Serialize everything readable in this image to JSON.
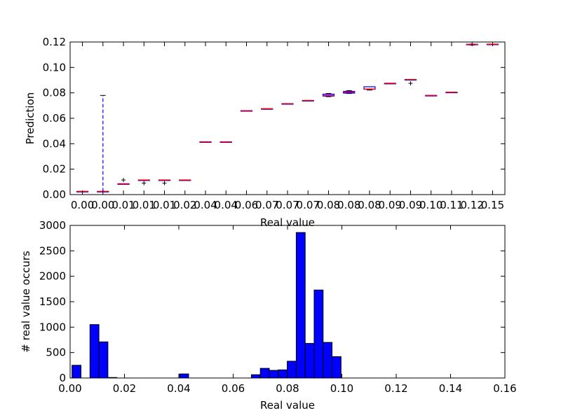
{
  "chart_data": [
    {
      "type": "box",
      "xlabel": "Real value",
      "ylabel": "Prediction",
      "ylim": [
        0,
        0.12
      ],
      "y_ticks": [
        "0.00",
        "0.02",
        "0.04",
        "0.06",
        "0.08",
        "0.10",
        "0.12"
      ],
      "categories": [
        "0.00",
        "0.00",
        "0.01",
        "0.01",
        "0.01",
        "0.02",
        "0.04",
        "0.04",
        "0.06",
        "0.07",
        "0.07",
        "0.07",
        "0.08",
        "0.08",
        "0.08",
        "0.09",
        "0.09",
        "0.10",
        "0.11",
        "0.12",
        "0.15"
      ],
      "boxes": [
        {
          "median": 0.0025,
          "q1": 0.0025,
          "q3": 0.0025,
          "whisker_low": 0.0025,
          "whisker_high": 0.0025,
          "fliers": []
        },
        {
          "median": 0.0025,
          "q1": 0.0025,
          "q3": 0.0025,
          "whisker_low": 0.0025,
          "whisker_high": 0.078,
          "fliers": []
        },
        {
          "median": 0.0085,
          "q1": 0.0085,
          "q3": 0.0085,
          "whisker_low": 0.0085,
          "whisker_high": 0.0085,
          "fliers": [
            0.0115
          ]
        },
        {
          "median": 0.0115,
          "q1": 0.0115,
          "q3": 0.0115,
          "whisker_low": 0.0115,
          "whisker_high": 0.0115,
          "fliers": [
            0.009
          ]
        },
        {
          "median": 0.0115,
          "q1": 0.0115,
          "q3": 0.0115,
          "whisker_low": 0.0115,
          "whisker_high": 0.0115,
          "fliers": [
            0.009
          ]
        },
        {
          "median": 0.0115,
          "q1": 0.0115,
          "q3": 0.0115,
          "whisker_low": 0.0115,
          "whisker_high": 0.0115,
          "fliers": []
        },
        {
          "median": 0.0415,
          "q1": 0.0415,
          "q3": 0.0415,
          "whisker_low": 0.0415,
          "whisker_high": 0.0415,
          "fliers": []
        },
        {
          "median": 0.0415,
          "q1": 0.0415,
          "q3": 0.0415,
          "whisker_low": 0.0415,
          "whisker_high": 0.0415,
          "fliers": []
        },
        {
          "median": 0.066,
          "q1": 0.066,
          "q3": 0.066,
          "whisker_low": 0.066,
          "whisker_high": 0.066,
          "fliers": []
        },
        {
          "median": 0.0675,
          "q1": 0.0675,
          "q3": 0.0675,
          "whisker_low": 0.0675,
          "whisker_high": 0.0675,
          "fliers": []
        },
        {
          "median": 0.0715,
          "q1": 0.0715,
          "q3": 0.0715,
          "whisker_low": 0.0715,
          "whisker_high": 0.0715,
          "fliers": []
        },
        {
          "median": 0.074,
          "q1": 0.074,
          "q3": 0.074,
          "whisker_low": 0.074,
          "whisker_high": 0.074,
          "fliers": []
        },
        {
          "median": 0.078,
          "q1": 0.0775,
          "q3": 0.079,
          "whisker_low": 0.077,
          "whisker_high": 0.0795,
          "fliers": []
        },
        {
          "median": 0.0805,
          "q1": 0.0798,
          "q3": 0.0812,
          "whisker_low": 0.0795,
          "whisker_high": 0.0818,
          "fliers": []
        },
        {
          "median": 0.083,
          "q1": 0.0828,
          "q3": 0.0848,
          "whisker_low": 0.0822,
          "whisker_high": 0.0848,
          "fliers": []
        },
        {
          "median": 0.0875,
          "q1": 0.0875,
          "q3": 0.0875,
          "whisker_low": 0.0875,
          "whisker_high": 0.0875,
          "fliers": []
        },
        {
          "median": 0.0905,
          "q1": 0.0905,
          "q3": 0.0905,
          "whisker_low": 0.0905,
          "whisker_high": 0.0905,
          "fliers": [
            0.0875
          ]
        },
        {
          "median": 0.078,
          "q1": 0.078,
          "q3": 0.078,
          "whisker_low": 0.078,
          "whisker_high": 0.078,
          "fliers": []
        },
        {
          "median": 0.0805,
          "q1": 0.0805,
          "q3": 0.0805,
          "whisker_low": 0.0805,
          "whisker_high": 0.0805,
          "fliers": []
        },
        {
          "median": 0.118,
          "q1": 0.1178,
          "q3": 0.1182,
          "whisker_low": 0.1176,
          "whisker_high": 0.1184,
          "fliers": []
        },
        {
          "median": 0.1183,
          "q1": 0.1183,
          "q3": 0.1183,
          "whisker_low": 0.1183,
          "whisker_high": 0.1183,
          "fliers": []
        }
      ],
      "colors": {
        "box": "#0000ff",
        "median": "#ff0000",
        "whisker": "#0000ff",
        "cap": "#000000",
        "flier": "#000000"
      },
      "grid": false
    },
    {
      "type": "bar",
      "histogram": true,
      "xlabel": "Real value",
      "ylabel": "# real value occurs",
      "xlim": [
        0.0,
        0.16
      ],
      "ylim": [
        0,
        3000
      ],
      "x_ticks": [
        "0.00",
        "0.02",
        "0.04",
        "0.06",
        "0.08",
        "0.10",
        "0.12",
        "0.14",
        "0.16"
      ],
      "y_ticks": [
        "0",
        "500",
        "1000",
        "1500",
        "2000",
        "2500",
        "3000"
      ],
      "bin_start": 0.0007,
      "bin_width": 0.0033,
      "values": [
        250,
        0,
        1050,
        710,
        10,
        0,
        0,
        0,
        0,
        0,
        0,
        0,
        80,
        0,
        0,
        0,
        0,
        0,
        0,
        0,
        65,
        190,
        150,
        160,
        330,
        2860,
        680,
        1730,
        700,
        420,
        0,
        0,
        0,
        0,
        0,
        0,
        0,
        0,
        0,
        0,
        0,
        0,
        0,
        0,
        0,
        0
      ],
      "colors": {
        "bar": "#0000ff",
        "edge": "#000000"
      },
      "grid": false
    }
  ]
}
